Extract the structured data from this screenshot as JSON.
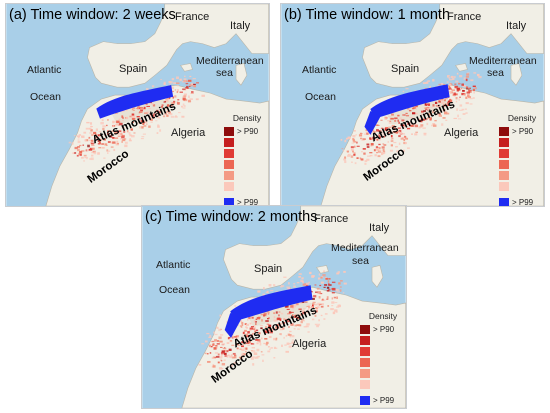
{
  "panels": [
    {
      "title": "(a) Time window: 2 weeks",
      "labels": {
        "france": "France",
        "italy": "Italy",
        "spain": "Spain",
        "algeria": "Algeria",
        "morocco": "Morocco",
        "atlas": "Atlas mountains",
        "atlantic": "Atlantic",
        "ocean": "Ocean",
        "mediterranean": "Mediterranean",
        "sea": "sea"
      },
      "legend": {
        "title": "Density",
        "top_label": "> P90",
        "bottom_label": "> P99"
      }
    },
    {
      "title": "(b) Time window: 1 month",
      "labels": {
        "france": "France",
        "italy": "Italy",
        "spain": "Spain",
        "algeria": "Algeria",
        "morocco": "Morocco",
        "atlas": "Atlas mountains",
        "atlantic": "Atlantic",
        "ocean": "Ocean",
        "mediterranean": "Mediterranean",
        "sea": "sea"
      },
      "legend": {
        "title": "Density",
        "top_label": "> P90",
        "bottom_label": "> P99"
      }
    },
    {
      "title": "(c) Time window: 2 months",
      "labels": {
        "france": "France",
        "italy": "Italy",
        "spain": "Spain",
        "algeria": "Algeria",
        "morocco": "Morocco",
        "atlas": "Atlas mountains",
        "atlantic": "Atlantic",
        "ocean": "Ocean",
        "mediterranean": "Mediterranean",
        "sea": "sea"
      },
      "legend": {
        "title": "Density",
        "top_label": "> P90",
        "bottom_label": "> P99"
      }
    }
  ],
  "colors": {
    "ocean": "#a9cfe8",
    "land": "#f1efe6",
    "land_shade": "#e2ddcd",
    "density_p99": "#1f2cf2",
    "density_ramp": [
      "#8e0c0c",
      "#c51f1f",
      "#e03b35",
      "#ec6653",
      "#f49a84",
      "#fbc8bb"
    ]
  }
}
